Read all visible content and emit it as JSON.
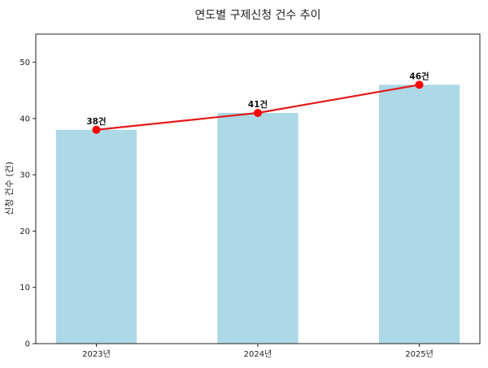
{
  "chart_data": {
    "type": "bar+line",
    "title": "연도별 구제신청 건수 추이",
    "xlabel": "",
    "ylabel": "신청 건수 (건)",
    "categories": [
      "2023년",
      "2024년",
      "2025년"
    ],
    "values": [
      38,
      41,
      46
    ],
    "data_labels": [
      "38건",
      "41건",
      "46건"
    ],
    "ylim": [
      0,
      55
    ],
    "yticks": [
      0,
      10,
      20,
      30,
      40,
      50
    ],
    "grid": false,
    "bar_color": "#add8e6",
    "line_color": "#e31a1c",
    "marker_color": "#ff0000"
  }
}
